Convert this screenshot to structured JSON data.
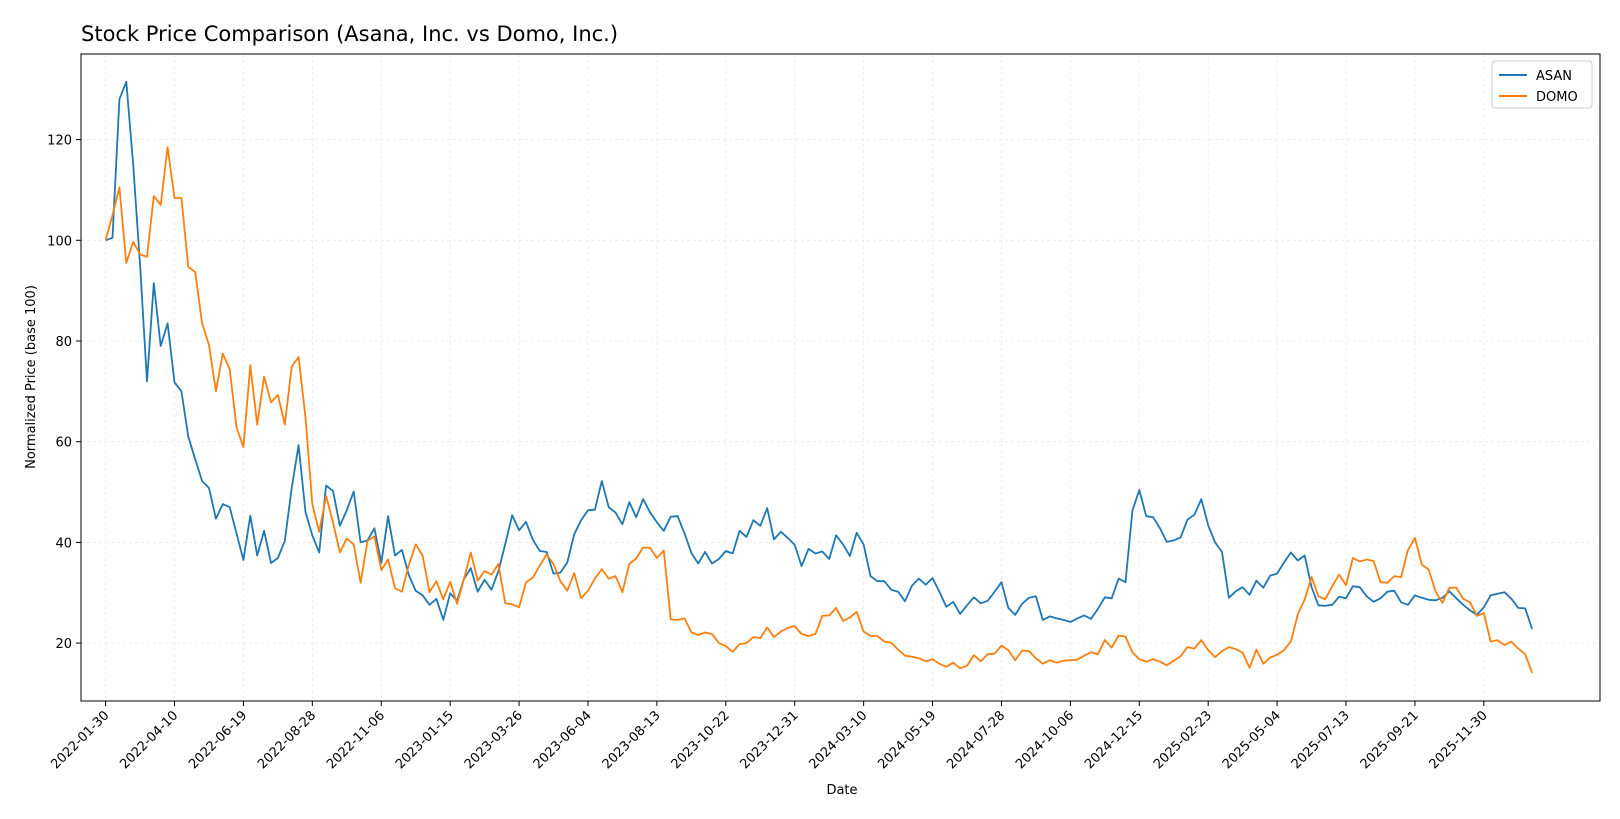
{
  "chart_data": {
    "type": "line",
    "title": "Stock Price Comparison (Asana, Inc. vs Domo, Inc.)",
    "xlabel": "Date",
    "ylabel": "Normalized Price (base 100)",
    "grid": true,
    "legend_position": "top-right",
    "xlim": [
      "2022-01-05",
      "2026-03-28"
    ],
    "ylim": [
      8.5,
      137
    ],
    "x_ticks": [
      "2022-01-30",
      "2022-04-10",
      "2022-06-19",
      "2022-08-28",
      "2022-11-06",
      "2023-01-15",
      "2023-03-26",
      "2023-06-04",
      "2023-08-13",
      "2023-10-22",
      "2023-12-31",
      "2024-03-10",
      "2024-05-19",
      "2024-07-28",
      "2024-10-06",
      "2024-12-15",
      "2025-02-23",
      "2025-05-04",
      "2025-07-13",
      "2025-09-21",
      "2025-11-30"
    ],
    "y_ticks": [
      20,
      40,
      60,
      80,
      100,
      120
    ],
    "start_date": "2022-01-30",
    "step_days": 7,
    "series": [
      {
        "name": "ASAN",
        "color": "#1f77b4",
        "values": [
          100,
          100.5,
          128,
          131.5,
          115,
          95,
          72,
          91.5,
          79,
          83.5,
          71.8,
          70,
          61,
          56.5,
          52.2,
          50.8,
          44.7,
          47.6,
          47,
          41.8,
          36.5,
          45.3,
          37.4,
          42.3,
          35.9,
          36.9,
          40.3,
          50.8,
          59.3,
          46,
          41.4,
          38,
          51.3,
          50.2,
          43.3,
          46.4,
          50.1,
          40,
          40.4,
          42.8,
          35.9,
          45.2,
          37.4,
          38.5,
          33.5,
          30.4,
          29.5,
          27.6,
          28.8,
          24.6,
          29.9,
          28.4,
          32.7,
          34.9,
          30.2,
          32.6,
          30.6,
          34.3,
          39.7,
          45.4,
          42.4,
          44.1,
          40.5,
          38.3,
          38.1,
          33.8,
          34,
          36,
          41.6,
          44.4,
          46.4,
          46.5,
          52.2,
          47,
          45.9,
          43.6,
          48,
          45,
          48.6,
          46,
          44,
          42.3,
          45.1,
          45.2,
          41.8,
          37.9,
          35.8,
          38.1,
          35.8,
          36.7,
          38.3,
          37.8,
          42.3,
          41.1,
          44.4,
          43.3,
          46.8,
          40.6,
          42.1,
          40.9,
          39.5,
          35.3,
          38.7,
          37.8,
          38.2,
          36.7,
          41.4,
          39.6,
          37.3,
          41.9,
          39.6,
          33.3,
          32.3,
          32.3,
          30.6,
          30.2,
          28.3,
          31.4,
          32.8,
          31.6,
          32.9,
          30.2,
          27.2,
          28.2,
          25.8,
          27.5,
          29.1,
          27.9,
          28.4,
          30.2,
          32.1,
          27,
          25.6,
          27.8,
          29,
          29.3,
          24.6,
          25.3,
          24.9,
          24.6,
          24.2,
          24.9,
          25.5,
          24.8,
          26.8,
          29.1,
          28.9,
          32.8,
          32.1,
          46.3,
          50.4,
          45.2,
          45,
          42.8,
          40.1,
          40.4,
          41,
          44.5,
          45.5,
          48.6,
          43.4,
          40,
          38.1,
          29,
          30.3,
          31.1,
          29.6,
          32.4,
          31,
          33.4,
          33.8,
          36,
          38,
          36.4,
          37.4,
          31.1,
          27.5,
          27.4,
          27.6,
          29.2,
          28.9,
          31.3,
          31.1,
          29.3,
          28.2,
          28.9,
          30.2,
          30.4,
          28.1,
          27.6,
          29.5,
          29,
          28.6,
          28.5,
          29,
          30.3,
          28.9,
          27.6,
          26.5,
          25.6,
          27.1,
          29.5,
          29.8,
          30.1,
          28.8,
          27,
          26.9,
          22.8
        ]
      },
      {
        "name": "DOMO",
        "color": "#ff7f0e",
        "values": [
          100,
          105,
          110.5,
          95.5,
          99.7,
          97.2,
          96.7,
          108.8,
          107,
          118.5,
          108.4,
          108.4,
          94.7,
          93.7,
          83.5,
          79.2,
          70,
          77.5,
          74.4,
          62.9,
          58.9,
          75.2,
          63.4,
          72.9,
          67.8,
          69.3,
          63.4,
          74.9,
          76.8,
          64.8,
          47.6,
          42.1,
          49.2,
          44,
          38,
          40.8,
          39.6,
          32,
          40.3,
          41.2,
          34.5,
          36.6,
          30.9,
          30.2,
          35.5,
          39.6,
          37.4,
          30.1,
          32.3,
          28.7,
          32.2,
          27.8,
          32.7,
          38,
          32.4,
          34.3,
          33.6,
          35.7,
          27.9,
          27.7,
          27.1,
          32.1,
          33,
          35.4,
          37.6,
          35.7,
          32.3,
          30.4,
          33.9,
          28.9,
          30.4,
          32.8,
          34.7,
          32.8,
          33.3,
          30.1,
          35.7,
          36.8,
          39,
          38.9,
          36.9,
          38.4,
          24.7,
          24.6,
          24.9,
          22.1,
          21.6,
          22.1,
          21.8,
          20,
          19.4,
          18.3,
          19.8,
          20,
          21.2,
          21,
          23.1,
          21.2,
          22.3,
          23,
          23.4,
          21.8,
          21.4,
          21.8,
          25.4,
          25.5,
          27,
          24.4,
          25.1,
          26.2,
          22.3,
          21.4,
          21.4,
          20.3,
          20.1,
          18.7,
          17.5,
          17.3,
          17,
          16.4,
          16.8,
          15.9,
          15.3,
          16.1,
          15,
          15.5,
          17.6,
          16.4,
          17.8,
          17.9,
          19.5,
          18.6,
          16.6,
          18.5,
          18.4,
          17,
          15.9,
          16.6,
          16.1,
          16.5,
          16.6,
          16.7,
          17.5,
          18.2,
          17.8,
          20.6,
          19.1,
          21.5,
          21.3,
          18.2,
          16.8,
          16.3,
          16.8,
          16.3,
          15.6,
          16.5,
          17.4,
          19.2,
          18.9,
          20.6,
          18.6,
          17.2,
          18.4,
          19.2,
          18.8,
          18.1,
          15.1,
          18.7,
          15.9,
          17.1,
          17.7,
          18.6,
          20.3,
          25.7,
          28.7,
          33.1,
          29.3,
          28.7,
          31.3,
          33.6,
          31.5,
          36.9,
          36.2,
          36.6,
          36.3,
          32.1,
          32,
          33.3,
          33.1,
          38.5,
          40.9,
          35.6,
          34.6,
          30.2,
          28,
          31,
          31,
          28.8,
          28.1,
          25.4,
          26,
          20.3,
          20.6,
          19.6,
          20.3,
          18.9,
          17.8,
          14.1
        ]
      }
    ]
  }
}
